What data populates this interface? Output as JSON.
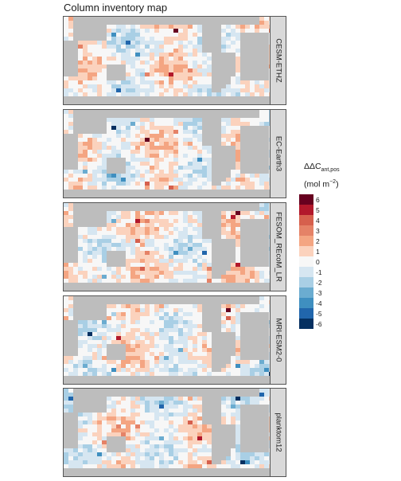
{
  "chart_data": {
    "type": "heatmap",
    "title": "Column inventory map",
    "legend": {
      "title_main": "ΔΔC",
      "title_sub": "ant,pos",
      "unit_prefix": "(mol m",
      "unit_sup": "−2",
      "unit_suffix": ")",
      "position": "right",
      "ticks": [
        "6",
        "5",
        "4",
        "3",
        "2",
        "1",
        "0",
        "-1",
        "-2",
        "-3",
        "-4",
        "-5",
        "-6"
      ],
      "colors": [
        "#67001f",
        "#b2182b",
        "#d6604d",
        "#e58267",
        "#f4a582",
        "#fbd2bd",
        "#f7f7f7",
        "#d6e6f1",
        "#a9cfe5",
        "#6bacd0",
        "#3f8fc0",
        "#2166ac",
        "#053061"
      ]
    },
    "panels": [
      {
        "model": "CESM-ETHZ"
      },
      {
        "model": "EC-Earth3"
      },
      {
        "model": "FESOM_REcoM_LR"
      },
      {
        "model": "MRI-ESM2-0"
      },
      {
        "model": "planktom12"
      }
    ],
    "colors": {
      "land": "#bdbdbd",
      "strip": "#d9d9d9"
    }
  }
}
